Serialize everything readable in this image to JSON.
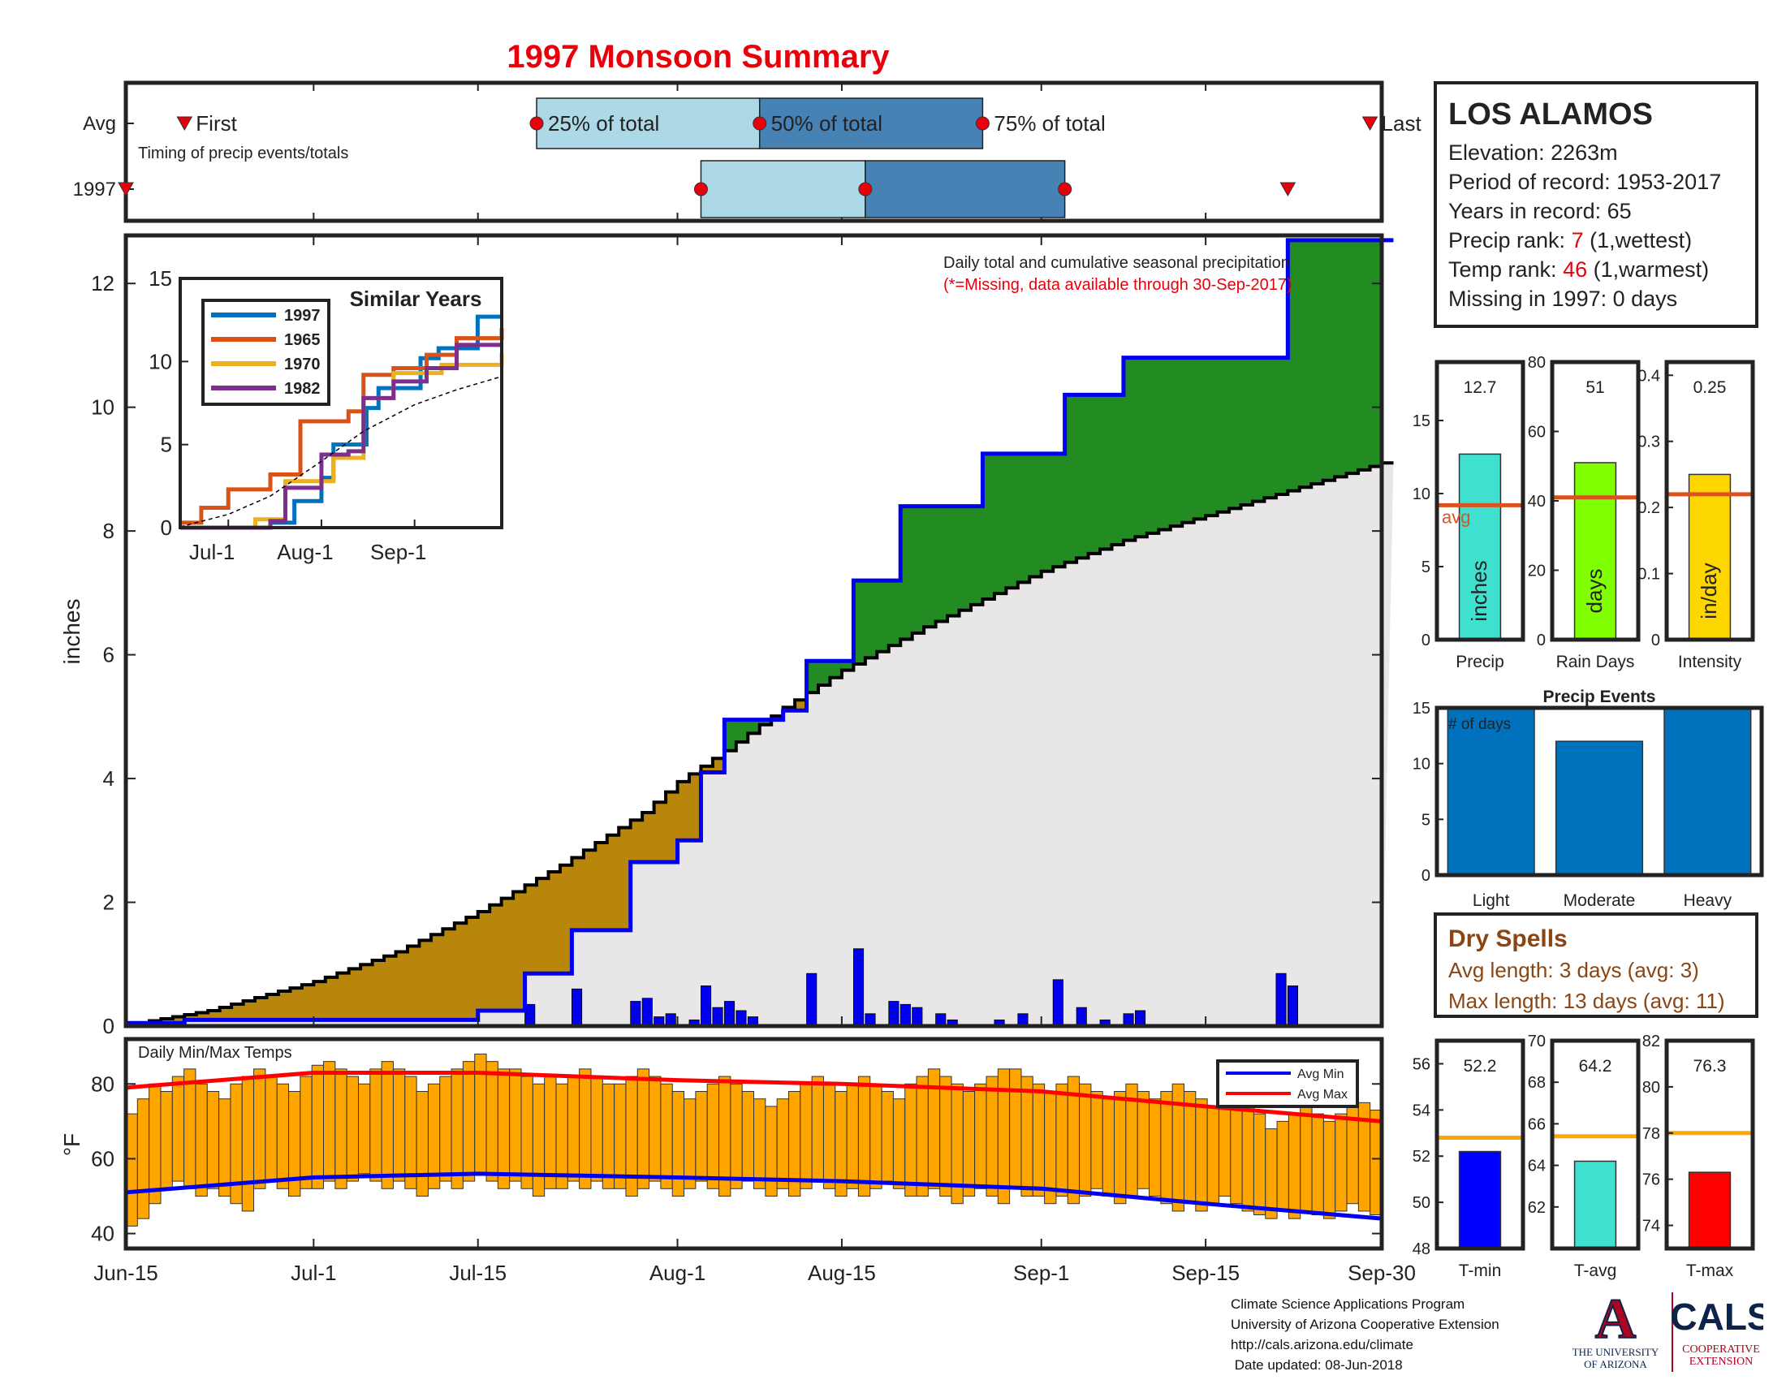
{
  "title": "1997 Monsoon Summary",
  "station": {
    "name": "LOS ALAMOS",
    "elevation": "Elevation: 2263m",
    "period": "Period of record: 1953-2017",
    "years": "Years in record: 65",
    "precip_rank_prefix": "Precip rank: ",
    "precip_rank_value": "7",
    "precip_rank_suffix": " (1,wettest)",
    "temp_rank_prefix": "Temp rank: ",
    "temp_rank_value": "46",
    "temp_rank_suffix": " (1,warmest)",
    "missing": "Missing in 1997: 0 days"
  },
  "dry_spells": {
    "title": "Dry Spells",
    "avg": "Avg length: 3 days (avg: 3)",
    "max": "Max length: 13 days (avg: 11)"
  },
  "footer": {
    "line1": "Climate Science Applications Program",
    "line2": "University of Arizona Cooperative Extension",
    "line3": "http://cals.arizona.edu/climate",
    "line4": " Date updated: 08-Jun-2018"
  },
  "logos": {
    "ua_letter": "A",
    "ua_line1": "THE UNIVERSITY",
    "ua_line2": "OF ARIZONA",
    "cals": "CALS",
    "cals_line1": "COOPERATIVE",
    "cals_line2": "EXTENSION",
    "ua_color": "#ab0520",
    "cals_color": "#0c234b"
  },
  "colors": {
    "below_avg_fill": "#b8860b",
    "above_avg_fill": "#228b22",
    "avg_fill": "#e8e6e6",
    "precip_line": "#0000ee",
    "daily_bar": "#0000ee",
    "temp_bar": "#ffa500",
    "avg_max": "#ff0000",
    "avg_min": "#0000ee",
    "box_light": "#add8e6",
    "box_dark": "#4682b4"
  },
  "chart_data": [
    {
      "id": "timing",
      "type": "box",
      "annotation": "Timing of precip events/totals",
      "rows": [
        "Avg",
        "1997"
      ],
      "x_ticks": [
        "Jun-15",
        "Jul-1",
        "Jul-15",
        "Aug-1",
        "Aug-15",
        "Sep-1",
        "Sep-15",
        "Sep-30"
      ],
      "avg": {
        "first": "Jun-20",
        "q25": "Jul-20",
        "q50": "Aug-8",
        "q75": "Aug-27",
        "last": "Sep-29",
        "labels": {
          "first": "First",
          "q25": "25% of total",
          "q50": "50% of total",
          "q75": "75% of total",
          "last": "Last"
        }
      },
      "y1997": {
        "first": "Jun-15",
        "q25": "Aug-3",
        "q50": "Aug-17",
        "q75": "Sep-3",
        "last": "Sep-22"
      }
    },
    {
      "id": "cumulative_precip",
      "type": "area",
      "annotation": "Daily total and cumulative seasonal precipitation",
      "annotation2": "(*=Missing, data available through 30-Sep-2017)",
      "ylabel": "inches",
      "ylim": [
        0,
        12.7
      ],
      "yticks": [
        0,
        2,
        4,
        6,
        8,
        10,
        12
      ],
      "x_ticks": [
        "Jun-15",
        "Jul-1",
        "Jul-15",
        "Aug-1",
        "Aug-15",
        "Sep-1",
        "Sep-15",
        "Sep-30"
      ],
      "avg_cumulative": [
        {
          "date": "Jun-15",
          "value": 0.02
        },
        {
          "date": "Jun-22",
          "value": 0.25
        },
        {
          "date": "Jul-1",
          "value": 0.72
        },
        {
          "date": "Jul-8",
          "value": 1.2
        },
        {
          "date": "Jul-15",
          "value": 1.85
        },
        {
          "date": "Jul-22",
          "value": 2.6
        },
        {
          "date": "Jul-29",
          "value": 3.45
        },
        {
          "date": "Aug-1",
          "value": 3.95
        },
        {
          "date": "Aug-5",
          "value": 4.45
        },
        {
          "date": "Aug-10",
          "value": 5.15
        },
        {
          "date": "Aug-15",
          "value": 5.75
        },
        {
          "date": "Aug-22",
          "value": 6.45
        },
        {
          "date": "Sep-1",
          "value": 7.35
        },
        {
          "date": "Sep-8",
          "value": 7.85
        },
        {
          "date": "Sep-15",
          "value": 8.25
        },
        {
          "date": "Sep-22",
          "value": 8.65
        },
        {
          "date": "Sep-30",
          "value": 9.1
        }
      ],
      "cumulative_1997": [
        {
          "date": "Jun-15",
          "value": 0.05
        },
        {
          "date": "Jun-20",
          "value": 0.1
        },
        {
          "date": "Jul-15",
          "value": 0.25
        },
        {
          "date": "Jul-19",
          "value": 0.85
        },
        {
          "date": "Jul-23",
          "value": 1.55
        },
        {
          "date": "Jul-28",
          "value": 2.65
        },
        {
          "date": "Aug-1",
          "value": 3.0
        },
        {
          "date": "Aug-3",
          "value": 4.1
        },
        {
          "date": "Aug-5",
          "value": 4.95
        },
        {
          "date": "Aug-10",
          "value": 5.1
        },
        {
          "date": "Aug-12",
          "value": 5.9
        },
        {
          "date": "Aug-16",
          "value": 7.2
        },
        {
          "date": "Aug-20",
          "value": 8.4
        },
        {
          "date": "Aug-27",
          "value": 9.25
        },
        {
          "date": "Sep-3",
          "value": 10.2
        },
        {
          "date": "Sep-8",
          "value": 10.8
        },
        {
          "date": "Sep-21",
          "value": 10.8
        },
        {
          "date": "Sep-22",
          "value": 12.7
        },
        {
          "date": "Sep-30",
          "value": 12.7
        }
      ],
      "daily_1997": [
        {
          "date": "Jun-15",
          "value": 0.06
        },
        {
          "date": "Jul-19",
          "value": 0.35
        },
        {
          "date": "Jul-23",
          "value": 0.6
        },
        {
          "date": "Jul-28",
          "value": 0.4
        },
        {
          "date": "Jul-29",
          "value": 0.45
        },
        {
          "date": "Jul-30",
          "value": 0.15
        },
        {
          "date": "Jul-31",
          "value": 0.2
        },
        {
          "date": "Aug-2",
          "value": 0.1
        },
        {
          "date": "Aug-3",
          "value": 0.65
        },
        {
          "date": "Aug-4",
          "value": 0.3
        },
        {
          "date": "Aug-5",
          "value": 0.4
        },
        {
          "date": "Aug-6",
          "value": 0.25
        },
        {
          "date": "Aug-7",
          "value": 0.15
        },
        {
          "date": "Aug-12",
          "value": 0.85
        },
        {
          "date": "Aug-16",
          "value": 1.25
        },
        {
          "date": "Aug-17",
          "value": 0.2
        },
        {
          "date": "Aug-19",
          "value": 0.4
        },
        {
          "date": "Aug-20",
          "value": 0.35
        },
        {
          "date": "Aug-21",
          "value": 0.3
        },
        {
          "date": "Aug-23",
          "value": 0.2
        },
        {
          "date": "Aug-24",
          "value": 0.1
        },
        {
          "date": "Aug-28",
          "value": 0.1
        },
        {
          "date": "Aug-30",
          "value": 0.2
        },
        {
          "date": "Sep-2",
          "value": 0.75
        },
        {
          "date": "Sep-4",
          "value": 0.3
        },
        {
          "date": "Sep-6",
          "value": 0.1
        },
        {
          "date": "Sep-8",
          "value": 0.2
        },
        {
          "date": "Sep-9",
          "value": 0.25
        },
        {
          "date": "Sep-21",
          "value": 0.85
        },
        {
          "date": "Sep-22",
          "value": 0.65
        }
      ]
    },
    {
      "id": "similar_years",
      "type": "line",
      "title": "Similar Years",
      "ylim": [
        0,
        15
      ],
      "yticks": [
        0,
        5,
        10,
        15
      ],
      "x_ticks": [
        "Jul-1",
        "Aug-1",
        "Sep-1"
      ],
      "series": [
        {
          "name": "1997",
          "color": "#0072bd",
          "values": [
            {
              "date": "Jun-15",
              "value": 0
            },
            {
              "date": "Jul-15",
              "value": 0.3
            },
            {
              "date": "Jul-23",
              "value": 1.6
            },
            {
              "date": "Aug-1",
              "value": 3.0
            },
            {
              "date": "Aug-5",
              "value": 5.0
            },
            {
              "date": "Aug-16",
              "value": 7.2
            },
            {
              "date": "Aug-20",
              "value": 8.4
            },
            {
              "date": "Sep-3",
              "value": 10.2
            },
            {
              "date": "Sep-9",
              "value": 10.8
            },
            {
              "date": "Sep-22",
              "value": 12.7
            },
            {
              "date": "Sep-30",
              "value": 12.7
            }
          ]
        },
        {
          "name": "1965",
          "color": "#d95319",
          "values": [
            {
              "date": "Jun-15",
              "value": 0.3
            },
            {
              "date": "Jun-22",
              "value": 1.2
            },
            {
              "date": "Jul-1",
              "value": 2.3
            },
            {
              "date": "Jul-15",
              "value": 3.2
            },
            {
              "date": "Jul-25",
              "value": 6.4
            },
            {
              "date": "Aug-10",
              "value": 7.0
            },
            {
              "date": "Aug-15",
              "value": 9.2
            },
            {
              "date": "Aug-25",
              "value": 9.6
            },
            {
              "date": "Sep-5",
              "value": 10.4
            },
            {
              "date": "Sep-15",
              "value": 11.4
            },
            {
              "date": "Sep-30",
              "value": 12.0
            }
          ]
        },
        {
          "name": "1970",
          "color": "#edb120",
          "values": [
            {
              "date": "Jun-15",
              "value": 0
            },
            {
              "date": "Jul-10",
              "value": 0.5
            },
            {
              "date": "Jul-20",
              "value": 2.8
            },
            {
              "date": "Aug-5",
              "value": 4.2
            },
            {
              "date": "Aug-15",
              "value": 7.8
            },
            {
              "date": "Aug-25",
              "value": 9.3
            },
            {
              "date": "Sep-10",
              "value": 9.8
            },
            {
              "date": "Sep-30",
              "value": 10.5
            }
          ]
        },
        {
          "name": "1982",
          "color": "#7e2f8e",
          "values": [
            {
              "date": "Jun-15",
              "value": 0
            },
            {
              "date": "Jul-15",
              "value": 0.4
            },
            {
              "date": "Jul-20",
              "value": 2.4
            },
            {
              "date": "Aug-1",
              "value": 4.4
            },
            {
              "date": "Aug-10",
              "value": 4.6
            },
            {
              "date": "Aug-15",
              "value": 7.8
            },
            {
              "date": "Aug-25",
              "value": 8.8
            },
            {
              "date": "Sep-5",
              "value": 9.6
            },
            {
              "date": "Sep-15",
              "value": 11.0
            },
            {
              "date": "Sep-30",
              "value": 11.0
            }
          ]
        },
        {
          "name": "",
          "color": "#000000",
          "dashed": true,
          "values": [
            {
              "date": "Jun-15",
              "value": 0.05
            },
            {
              "date": "Jul-1",
              "value": 0.8
            },
            {
              "date": "Jul-15",
              "value": 1.9
            },
            {
              "date": "Aug-1",
              "value": 4.0
            },
            {
              "date": "Aug-15",
              "value": 5.8
            },
            {
              "date": "Sep-1",
              "value": 7.4
            },
            {
              "date": "Sep-15",
              "value": 8.3
            },
            {
              "date": "Sep-30",
              "value": 9.1
            }
          ]
        }
      ]
    },
    {
      "id": "seasonal_totals",
      "type": "bar",
      "panels": [
        {
          "label": "Precip",
          "unit": "inches",
          "value": 12.7,
          "value_label": "12.7",
          "avg": 9.2,
          "avg_label": "avg",
          "ylim": [
            0,
            19
          ],
          "yticks": [
            0,
            5,
            10,
            15
          ],
          "color": "#40e0d0"
        },
        {
          "label": "Rain Days",
          "unit": "days",
          "value": 51,
          "value_label": "51",
          "avg": 41,
          "ylim": [
            0,
            80
          ],
          "yticks": [
            0,
            20,
            40,
            60,
            80
          ],
          "color": "#7fff00"
        },
        {
          "label": "Intensity",
          "unit": "in/day",
          "value": 0.25,
          "value_label": "0.25",
          "avg": 0.22,
          "ylim": [
            0,
            0.42
          ],
          "yticks": [
            0,
            0.1,
            0.2,
            0.3,
            0.4
          ],
          "color": "#ffd700"
        }
      ]
    },
    {
      "id": "precip_events",
      "type": "bar",
      "title": "Precip Events",
      "annotation": "# of days",
      "categories": [
        "Light",
        "Moderate",
        "Heavy"
      ],
      "values": [
        15,
        12,
        15
      ],
      "ylim": [
        0,
        15
      ],
      "yticks": [
        0,
        5,
        10,
        15
      ],
      "color": "#0072bd"
    },
    {
      "id": "daily_temps",
      "type": "bar",
      "annotation": "Daily Min/Max Temps",
      "ylabel": "°F",
      "ylim": [
        36,
        92
      ],
      "yticks": [
        40,
        60,
        80
      ],
      "x_ticks": [
        "Jun-15",
        "Jul-1",
        "Jul-15",
        "Aug-1",
        "Aug-15",
        "Sep-1",
        "Sep-15",
        "Sep-30"
      ],
      "legend": [
        "Avg Min",
        "Avg Max"
      ],
      "legend_position": "top-right",
      "avg_max": [
        {
          "date": "Jun-15",
          "value": 79
        },
        {
          "date": "Jul-1",
          "value": 83
        },
        {
          "date": "Jul-15",
          "value": 83
        },
        {
          "date": "Aug-1",
          "value": 81
        },
        {
          "date": "Aug-15",
          "value": 80
        },
        {
          "date": "Sep-1",
          "value": 78
        },
        {
          "date": "Sep-15",
          "value": 74
        },
        {
          "date": "Sep-30",
          "value": 70
        }
      ],
      "avg_min": [
        {
          "date": "Jun-15",
          "value": 51
        },
        {
          "date": "Jul-1",
          "value": 55
        },
        {
          "date": "Jul-15",
          "value": 56
        },
        {
          "date": "Aug-1",
          "value": 55
        },
        {
          "date": "Aug-15",
          "value": 54
        },
        {
          "date": "Sep-1",
          "value": 52
        },
        {
          "date": "Sep-15",
          "value": 48
        },
        {
          "date": "Sep-30",
          "value": 44
        }
      ],
      "temp_max": [
        72,
        76,
        80,
        78,
        82,
        84,
        80,
        78,
        76,
        80,
        82,
        84,
        82,
        80,
        78,
        82,
        85,
        86,
        84,
        82,
        80,
        84,
        86,
        84,
        82,
        78,
        80,
        82,
        84,
        86,
        88,
        86,
        84,
        84,
        82,
        80,
        82,
        80,
        82,
        84,
        82,
        80,
        80,
        82,
        84,
        82,
        80,
        78,
        76,
        78,
        80,
        82,
        80,
        78,
        76,
        74,
        76,
        78,
        80,
        82,
        80,
        78,
        80,
        82,
        80,
        78,
        76,
        80,
        82,
        84,
        82,
        80,
        78,
        80,
        82,
        84,
        84,
        82,
        80,
        78,
        80,
        82,
        80,
        78,
        76,
        78,
        80,
        78,
        76,
        78,
        80,
        78,
        76,
        74,
        76,
        78,
        74,
        72,
        68,
        70,
        72,
        74,
        72,
        70,
        72,
        74,
        75,
        73
      ],
      "temp_min": [
        42,
        44,
        48,
        52,
        54,
        52,
        50,
        52,
        50,
        48,
        46,
        52,
        54,
        52,
        50,
        52,
        52,
        54,
        52,
        54,
        56,
        54,
        52,
        54,
        52,
        50,
        52,
        54,
        52,
        54,
        56,
        54,
        52,
        54,
        52,
        50,
        52,
        52,
        54,
        52,
        54,
        52,
        52,
        50,
        52,
        54,
        52,
        50,
        52,
        54,
        52,
        50,
        52,
        54,
        52,
        50,
        52,
        50,
        52,
        54,
        52,
        50,
        52,
        50,
        52,
        54,
        52,
        50,
        50,
        52,
        50,
        48,
        50,
        52,
        50,
        48,
        52,
        50,
        50,
        48,
        50,
        48,
        50,
        52,
        50,
        48,
        50,
        52,
        50,
        48,
        46,
        48,
        46,
        48,
        50,
        48,
        46,
        45,
        44,
        46,
        44,
        46,
        45,
        44,
        46,
        48,
        46,
        45
      ]
    },
    {
      "id": "seasonal_temps",
      "type": "bar",
      "panels": [
        {
          "label": "T-min",
          "value": 52.2,
          "value_label": "52.2",
          "avg": 52.8,
          "ylim": [
            48,
            57
          ],
          "yticks": [
            48,
            50,
            52,
            54,
            56
          ],
          "color": "#0000ff"
        },
        {
          "label": "T-avg",
          "value": 64.2,
          "value_label": "64.2",
          "avg": 65.4,
          "ylim": [
            60,
            70
          ],
          "yticks": [
            62,
            64,
            66,
            68,
            70
          ],
          "color": "#40e0d0"
        },
        {
          "label": "T-max",
          "value": 76.3,
          "value_label": "76.3",
          "avg": 78,
          "ylim": [
            73,
            82
          ],
          "yticks": [
            74,
            76,
            78,
            80,
            82
          ],
          "color": "#ff0000"
        }
      ]
    }
  ]
}
